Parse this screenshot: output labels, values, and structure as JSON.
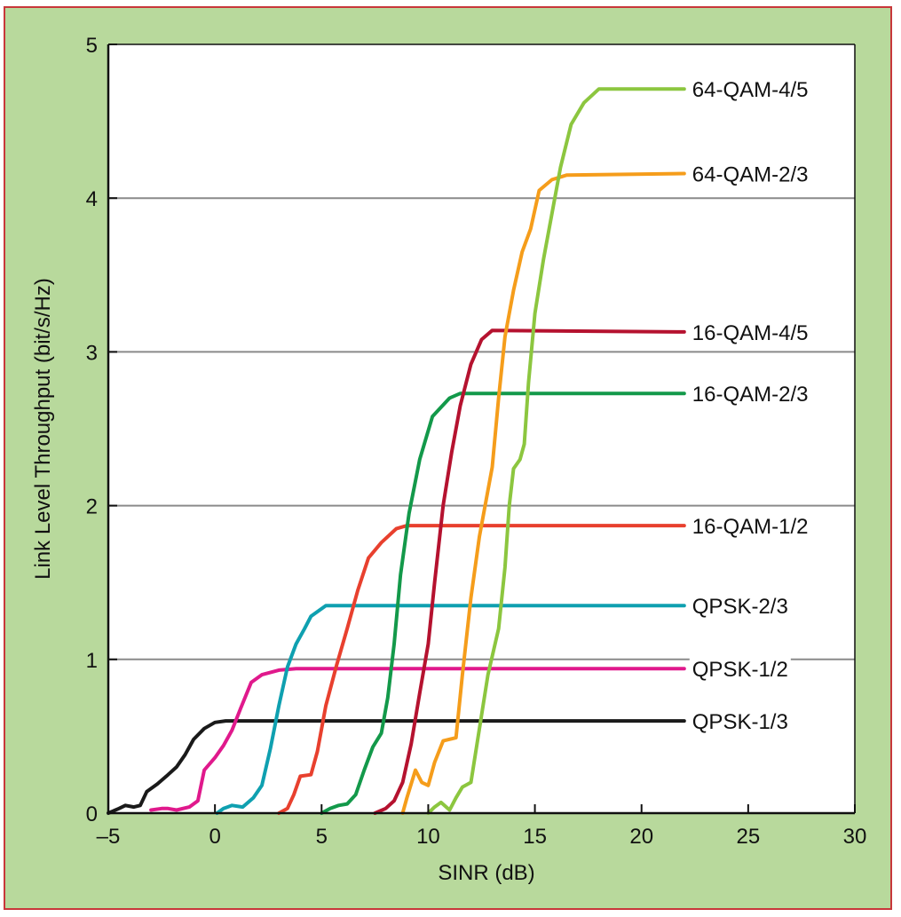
{
  "colors": {
    "frame_background": "#b8d99c",
    "frame_border": "#c8373a",
    "plot_background": "#ffffff",
    "grid": "#8a8a8a",
    "axis": "#111111"
  },
  "chart_data": {
    "type": "line",
    "title": "",
    "xlabel": "SINR (dB)",
    "ylabel": "Link Level Throughput (bit/s/Hz)",
    "xlim": [
      -5,
      30
    ],
    "ylim": [
      0,
      5
    ],
    "xticks": [
      -5,
      0,
      5,
      10,
      15,
      20,
      25,
      30
    ],
    "xtick_labels": [
      "–5",
      "0",
      "5",
      "10",
      "15",
      "20",
      "25",
      "30"
    ],
    "yticks": [
      0,
      1,
      2,
      3,
      4,
      5
    ],
    "ytick_labels": [
      "0",
      "1",
      "2",
      "3",
      "4",
      "5"
    ],
    "grid": "horizontal",
    "legend": "labels at right end of each line",
    "series": [
      {
        "name": "QPSK-1/3",
        "color": "#1a1a1a",
        "points": [
          [
            -5,
            0
          ],
          [
            -4.5,
            0.03
          ],
          [
            -4.2,
            0.05
          ],
          [
            -3.8,
            0.04
          ],
          [
            -3.5,
            0.05
          ],
          [
            -3.2,
            0.14
          ],
          [
            -2.7,
            0.19
          ],
          [
            -2.2,
            0.25
          ],
          [
            -1.8,
            0.3
          ],
          [
            -1.4,
            0.38
          ],
          [
            -1,
            0.48
          ],
          [
            -0.5,
            0.55
          ],
          [
            0,
            0.59
          ],
          [
            0.5,
            0.6
          ],
          [
            22,
            0.6
          ]
        ]
      },
      {
        "name": "QPSK-1/2",
        "color": "#e0198c",
        "points": [
          [
            -3,
            0.02
          ],
          [
            -2.5,
            0.03
          ],
          [
            -2.2,
            0.03
          ],
          [
            -1.8,
            0.02
          ],
          [
            -1.2,
            0.04
          ],
          [
            -0.8,
            0.08
          ],
          [
            -0.5,
            0.28
          ],
          [
            0,
            0.36
          ],
          [
            0.4,
            0.44
          ],
          [
            0.8,
            0.54
          ],
          [
            1.2,
            0.68
          ],
          [
            1.7,
            0.85
          ],
          [
            2.2,
            0.9
          ],
          [
            3,
            0.93
          ],
          [
            3.8,
            0.94
          ],
          [
            22,
            0.94
          ]
        ]
      },
      {
        "name": "QPSK-2/3",
        "color": "#0fa0b0",
        "points": [
          [
            0.1,
            0
          ],
          [
            0.4,
            0.03
          ],
          [
            0.8,
            0.05
          ],
          [
            1.3,
            0.04
          ],
          [
            1.8,
            0.1
          ],
          [
            2.2,
            0.18
          ],
          [
            2.6,
            0.42
          ],
          [
            3,
            0.7
          ],
          [
            3.4,
            0.95
          ],
          [
            3.8,
            1.1
          ],
          [
            4.2,
            1.2
          ],
          [
            4.5,
            1.28
          ],
          [
            5.2,
            1.35
          ],
          [
            22,
            1.35
          ]
        ]
      },
      {
        "name": "16-QAM-1/2",
        "color": "#e8402e",
        "points": [
          [
            3,
            0
          ],
          [
            3.4,
            0.03
          ],
          [
            3.7,
            0.12
          ],
          [
            4,
            0.24
          ],
          [
            4.5,
            0.25
          ],
          [
            4.8,
            0.4
          ],
          [
            5.2,
            0.7
          ],
          [
            5.7,
            0.96
          ],
          [
            6.2,
            1.2
          ],
          [
            6.7,
            1.45
          ],
          [
            7.2,
            1.66
          ],
          [
            7.8,
            1.76
          ],
          [
            8.5,
            1.85
          ],
          [
            9,
            1.87
          ],
          [
            22,
            1.87
          ]
        ]
      },
      {
        "name": "16-QAM-2/3",
        "color": "#13994a",
        "points": [
          [
            5,
            0
          ],
          [
            5.4,
            0.03
          ],
          [
            5.8,
            0.05
          ],
          [
            6.2,
            0.06
          ],
          [
            6.6,
            0.12
          ],
          [
            7,
            0.28
          ],
          [
            7.4,
            0.43
          ],
          [
            7.8,
            0.52
          ],
          [
            8.1,
            0.75
          ],
          [
            8.4,
            1.1
          ],
          [
            8.7,
            1.55
          ],
          [
            9.1,
            1.95
          ],
          [
            9.6,
            2.3
          ],
          [
            10.2,
            2.58
          ],
          [
            11,
            2.7
          ],
          [
            11.5,
            2.73
          ],
          [
            22,
            2.73
          ]
        ]
      },
      {
        "name": "16-QAM-4/5",
        "color": "#b5122f",
        "points": [
          [
            7.5,
            0
          ],
          [
            8,
            0.03
          ],
          [
            8.4,
            0.08
          ],
          [
            8.8,
            0.2
          ],
          [
            9.2,
            0.45
          ],
          [
            9.6,
            0.78
          ],
          [
            10,
            1.1
          ],
          [
            10.3,
            1.5
          ],
          [
            10.7,
            2
          ],
          [
            11.1,
            2.35
          ],
          [
            11.5,
            2.65
          ],
          [
            12,
            2.92
          ],
          [
            12.5,
            3.08
          ],
          [
            13,
            3.14
          ],
          [
            22,
            3.13
          ]
        ]
      },
      {
        "name": "64-QAM-2/3",
        "color": "#f59d1b",
        "points": [
          [
            8.8,
            0
          ],
          [
            9,
            0.1
          ],
          [
            9.4,
            0.28
          ],
          [
            9.7,
            0.2
          ],
          [
            10,
            0.18
          ],
          [
            10.3,
            0.33
          ],
          [
            10.7,
            0.47
          ],
          [
            11.3,
            0.49
          ],
          [
            11.6,
            0.9
          ],
          [
            12,
            1.4
          ],
          [
            12.4,
            1.8
          ],
          [
            13,
            2.25
          ],
          [
            13.3,
            2.7
          ],
          [
            13.6,
            3.1
          ],
          [
            14,
            3.4
          ],
          [
            14.4,
            3.65
          ],
          [
            14.8,
            3.8
          ],
          [
            15.2,
            4.05
          ],
          [
            15.8,
            4.12
          ],
          [
            16.5,
            4.15
          ],
          [
            22,
            4.16
          ]
        ]
      },
      {
        "name": "64-QAM-4/5",
        "color": "#8cc63f",
        "points": [
          [
            10,
            0
          ],
          [
            10.3,
            0.04
          ],
          [
            10.6,
            0.07
          ],
          [
            11,
            0.02
          ],
          [
            11.3,
            0.1
          ],
          [
            11.6,
            0.17
          ],
          [
            12,
            0.2
          ],
          [
            12.4,
            0.55
          ],
          [
            12.8,
            0.9
          ],
          [
            13.3,
            1.2
          ],
          [
            13.6,
            1.6
          ],
          [
            13.8,
            2
          ],
          [
            14,
            2.24
          ],
          [
            14.3,
            2.3
          ],
          [
            14.5,
            2.4
          ],
          [
            14.7,
            2.8
          ],
          [
            15,
            3.25
          ],
          [
            15.4,
            3.6
          ],
          [
            15.8,
            3.9
          ],
          [
            16.2,
            4.2
          ],
          [
            16.7,
            4.48
          ],
          [
            17.3,
            4.62
          ],
          [
            18,
            4.71
          ],
          [
            22,
            4.71
          ]
        ]
      }
    ]
  }
}
